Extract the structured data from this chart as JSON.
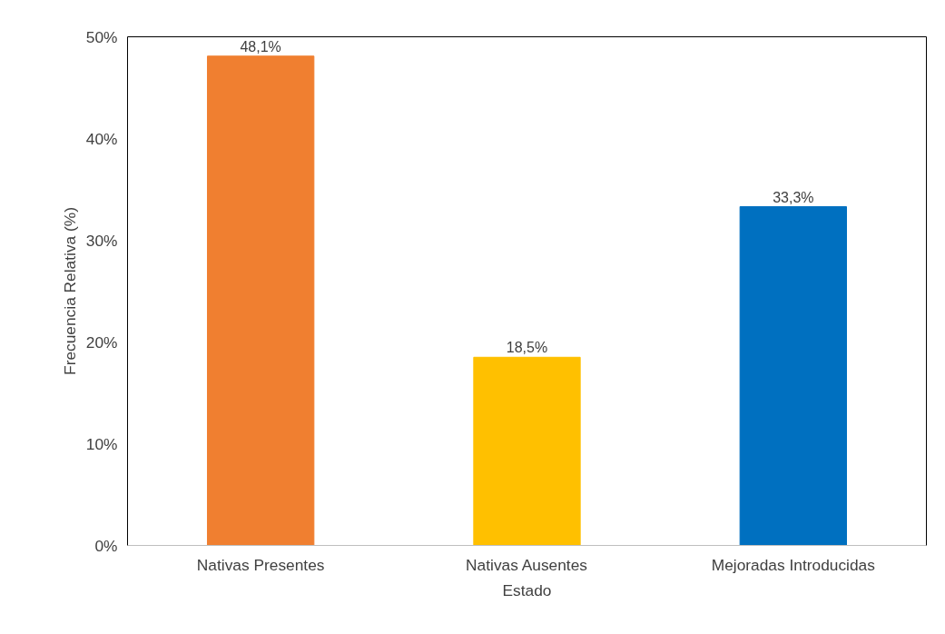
{
  "chart_data": {
    "type": "bar",
    "xlabel": "Estado",
    "ylabel": "Frecuencia Relativa (%)",
    "categories": [
      "Nativas Presentes",
      "Nativas Ausentes",
      "Mejoradas Introducidas"
    ],
    "values": [
      48.1,
      18.5,
      33.3
    ],
    "colors": [
      "#f07f30",
      "#ffc000",
      "#0070c0"
    ],
    "value_labels": [
      "48,1%",
      "18,5%",
      "33,3%"
    ],
    "ylim": [
      0,
      50
    ],
    "yticks": [
      {
        "value": 0,
        "label": "0%"
      },
      {
        "value": 10,
        "label": "10%"
      },
      {
        "value": 20,
        "label": "20%"
      },
      {
        "value": 30,
        "label": "30%"
      },
      {
        "value": 40,
        "label": "40%"
      },
      {
        "value": 50,
        "label": "50%"
      }
    ],
    "grid": false
  }
}
